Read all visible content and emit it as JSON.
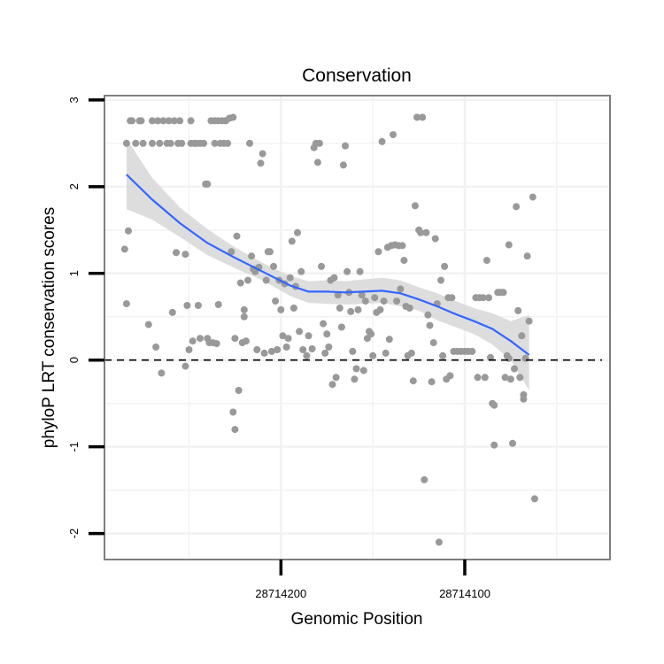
{
  "colors": {
    "background": "#ffffff",
    "panel_border": "#7f7f7f",
    "grid": "#f2f2f2",
    "points": "#999999",
    "smooth_line": "#3366ff",
    "ribbon": "#d9d9d9",
    "reference_line": "#000000"
  },
  "chart_data": {
    "type": "scatter",
    "title": "Conservation",
    "xlabel": "Genomic Position",
    "ylabel": "phyloP LRT conservation scores",
    "x_reversed": true,
    "xlim": [
      28714296,
      28714021
    ],
    "ylim": [
      -2.3,
      3.05
    ],
    "x_ticks": [
      28714200,
      28714100
    ],
    "x_tick_labels": [
      "28714200",
      "28714100"
    ],
    "y_ticks": [
      -2,
      -1,
      0,
      1,
      2,
      3
    ],
    "y_tick_labels": [
      "-2",
      "-1",
      "0",
      "1",
      "2",
      "3"
    ],
    "grid": true,
    "reference_line": {
      "y": 0,
      "style": "dashed"
    },
    "points": [
      [
        28714285,
        1.28
      ],
      [
        28714284,
        2.5
      ],
      [
        28714283,
        1.49
      ],
      [
        28714284,
        0.65
      ],
      [
        28714282,
        2.76
      ],
      [
        28714281,
        2.76
      ],
      [
        28714279,
        2.5
      ],
      [
        28714277,
        2.76
      ],
      [
        28714276,
        2.76
      ],
      [
        28714275,
        2.5
      ],
      [
        28714272,
        0.41
      ],
      [
        28714270,
        2.76
      ],
      [
        28714270,
        2.5
      ],
      [
        28714268,
        0.15
      ],
      [
        28714267,
        2.76
      ],
      [
        28714266,
        2.5
      ],
      [
        28714265,
        -0.15
      ],
      [
        28714264,
        2.76
      ],
      [
        28714262,
        2.5
      ],
      [
        28714261,
        2.76
      ],
      [
        28714260,
        2.5
      ],
      [
        28714259,
        0.55
      ],
      [
        28714258,
        2.76
      ],
      [
        28714257,
        1.24
      ],
      [
        28714256,
        2.5
      ],
      [
        28714255,
        2.76
      ],
      [
        28714254,
        2.5
      ],
      [
        28714252,
        1.22
      ],
      [
        28714252,
        -0.07
      ],
      [
        28714251,
        0.63
      ],
      [
        28714250,
        0.12
      ],
      [
        28714249,
        2.76
      ],
      [
        28714249,
        2.5
      ],
      [
        28714248,
        0.22
      ],
      [
        28714247,
        2.5
      ],
      [
        28714246,
        2.5
      ],
      [
        28714245,
        0.63
      ],
      [
        28714244,
        2.5
      ],
      [
        28714244,
        0.25
      ],
      [
        28714242,
        2.5
      ],
      [
        28714241,
        2.03
      ],
      [
        28714240,
        2.03
      ],
      [
        28714240,
        0.25
      ],
      [
        28714239,
        0.2
      ],
      [
        28714238,
        2.76
      ],
      [
        28714237,
        0.2
      ],
      [
        28714236,
        2.76
      ],
      [
        28714236,
        2.5
      ],
      [
        28714235,
        0.19
      ],
      [
        28714234,
        0.64
      ],
      [
        28714234,
        2.76
      ],
      [
        28714233,
        2.5
      ],
      [
        28714232,
        2.76
      ],
      [
        28714231,
        2.5
      ],
      [
        28714230,
        2.76
      ],
      [
        28714229,
        2.5
      ],
      [
        28714228,
        2.79
      ],
      [
        28714227,
        1.25
      ],
      [
        28714226,
        2.8
      ],
      [
        28714225,
        0.25
      ],
      [
        28714226,
        -0.6
      ],
      [
        28714225,
        -0.8
      ],
      [
        28714224,
        1.43
      ],
      [
        28714223,
        -0.35
      ],
      [
        28714222,
        0.89
      ],
      [
        28714221,
        0.2
      ],
      [
        28714220,
        0.5
      ],
      [
        28714220,
        0.58
      ],
      [
        28714219,
        0.22
      ],
      [
        28714218,
        0.92
      ],
      [
        28714217,
        2.5
      ],
      [
        28714216,
        1.2
      ],
      [
        28714215,
        1.05
      ],
      [
        28714214,
        1.02
      ],
      [
        28714213,
        0.12
      ],
      [
        28714212,
        1.07
      ],
      [
        28714211,
        2.27
      ],
      [
        28714210,
        2.38
      ],
      [
        28714209,
        0.08
      ],
      [
        28714208,
        0.92
      ],
      [
        28714207,
        1.25
      ],
      [
        28714206,
        1.25
      ],
      [
        28714205,
        0.1
      ],
      [
        28714204,
        1.08
      ],
      [
        28714203,
        0.68
      ],
      [
        28714202,
        0.12
      ],
      [
        28714201,
        0.92
      ],
      [
        28714200,
        0.58
      ],
      [
        28714199,
        0.28
      ],
      [
        28714198,
        0.88
      ],
      [
        28714197,
        0.15
      ],
      [
        28714196,
        0.25
      ],
      [
        28714195,
        0.95
      ],
      [
        28714194,
        1.37
      ],
      [
        28714193,
        0.6
      ],
      [
        28714192,
        0.85
      ],
      [
        28714191,
        1.47
      ],
      [
        28714190,
        0.33
      ],
      [
        28714189,
        1.02
      ],
      [
        28714188,
        0.12
      ],
      [
        28714186,
        0.05
      ],
      [
        28714185,
        0.28
      ],
      [
        28714183,
        0.13
      ],
      [
        28714182,
        2.45
      ],
      [
        28714181,
        2.5
      ],
      [
        28714180,
        2.28
      ],
      [
        28714179,
        2.5
      ],
      [
        28714178,
        1.08
      ],
      [
        28714177,
        0.42
      ],
      [
        28714176,
        0.08
      ],
      [
        28714175,
        0.3
      ],
      [
        28714174,
        0.15
      ],
      [
        28714173,
        0.92
      ],
      [
        28714172,
        -0.28
      ],
      [
        28714171,
        0.95
      ],
      [
        28714170,
        -0.2
      ],
      [
        28714169,
        0.75
      ],
      [
        28714168,
        0.6
      ],
      [
        28714167,
        0.38
      ],
      [
        28714166,
        2.25
      ],
      [
        28714165,
        2.47
      ],
      [
        28714164,
        1.02
      ],
      [
        28714163,
        0.78
      ],
      [
        28714162,
        0.56
      ],
      [
        28714161,
        0.1
      ],
      [
        28714160,
        -0.22
      ],
      [
        28714159,
        -0.1
      ],
      [
        28714158,
        0.58
      ],
      [
        28714157,
        1.02
      ],
      [
        28714156,
        0.75
      ],
      [
        28714155,
        -0.12
      ],
      [
        28714154,
        0.68
      ],
      [
        28714153,
        0.25
      ],
      [
        28714152,
        0.33
      ],
      [
        28714151,
        0.3
      ],
      [
        28714150,
        0.05
      ],
      [
        28714149,
        0.72
      ],
      [
        28714148,
        0.55
      ],
      [
        28714147,
        1.25
      ],
      [
        28714146,
        0.58
      ],
      [
        28714145,
        2.52
      ],
      [
        28714144,
        0.68
      ],
      [
        28714143,
        0.08
      ],
      [
        28714142,
        1.3
      ],
      [
        28714141,
        0.24
      ],
      [
        28714140,
        1.32
      ],
      [
        28714139,
        2.6
      ],
      [
        28714138,
        1.33
      ],
      [
        28714137,
        0.68
      ],
      [
        28714136,
        1.32
      ],
      [
        28714135,
        0.82
      ],
      [
        28714134,
        1.32
      ],
      [
        28714133,
        1.15
      ],
      [
        28714132,
        0.62
      ],
      [
        28714131,
        0.05
      ],
      [
        28714130,
        0.6
      ],
      [
        28714129,
        0.08
      ],
      [
        28714128,
        -0.24
      ],
      [
        28714127,
        1.78
      ],
      [
        28714126,
        2.8
      ],
      [
        28714125,
        1.5
      ],
      [
        28714124,
        1.47
      ],
      [
        28714123,
        2.8
      ],
      [
        28714122,
        -1.38
      ],
      [
        28714121,
        1.47
      ],
      [
        28714120,
        0.52
      ],
      [
        28714119,
        0.4
      ],
      [
        28714118,
        -0.25
      ],
      [
        28714117,
        0.2
      ],
      [
        28714116,
        1.4
      ],
      [
        28714115,
        0.65
      ],
      [
        28714114,
        -2.1
      ],
      [
        28714113,
        0.92
      ],
      [
        28714112,
        0.05
      ],
      [
        28714111,
        1.08
      ],
      [
        28714110,
        -0.22
      ],
      [
        28714109,
        0.72
      ],
      [
        28714108,
        -0.18
      ],
      [
        28714107,
        0.72
      ],
      [
        28714106,
        0.1
      ],
      [
        28714104,
        0.1
      ],
      [
        28714102,
        0.1
      ],
      [
        28714100,
        0.1
      ],
      [
        28714098,
        0.1
      ],
      [
        28714096,
        0.1
      ],
      [
        28714094,
        0.72
      ],
      [
        28714093,
        -0.2
      ],
      [
        28714092,
        0.72
      ],
      [
        28714090,
        0.72
      ],
      [
        28714089,
        -0.2
      ],
      [
        28714088,
        1.15
      ],
      [
        28714087,
        0.72
      ],
      [
        28714086,
        0.03
      ],
      [
        28714085,
        -0.5
      ],
      [
        28714084,
        -0.98
      ],
      [
        28714084,
        -0.52
      ],
      [
        28714082,
        0.78
      ],
      [
        28714081,
        0.78
      ],
      [
        28714080,
        0.78
      ],
      [
        28714079,
        0.78
      ],
      [
        28714078,
        -0.2
      ],
      [
        28714077,
        0.05
      ],
      [
        28714076,
        1.33
      ],
      [
        28714076,
        0.02
      ],
      [
        28714075,
        -0.22
      ],
      [
        28714074,
        -0.96
      ],
      [
        28714073,
        -0.1
      ],
      [
        28714072,
        1.77
      ],
      [
        28714071,
        0.57
      ],
      [
        28714070,
        -0.2
      ],
      [
        28714069,
        0.28
      ],
      [
        28714068,
        -0.4
      ],
      [
        28714068,
        -0.45
      ],
      [
        28714067,
        0.02
      ],
      [
        28714066,
        1.2
      ],
      [
        28714065,
        0.45
      ],
      [
        28714063,
        1.88
      ],
      [
        28714062,
        -1.6
      ]
    ],
    "smooth_line": {
      "x": [
        28714284,
        28714270,
        28714255,
        28714240,
        28714225,
        28714210,
        28714195,
        28714185,
        28714175,
        28714165,
        28714155,
        28714145,
        28714135,
        28714125,
        28714115,
        28714105,
        28714095,
        28714085,
        28714075,
        28714065
      ],
      "y": [
        2.14,
        1.85,
        1.58,
        1.35,
        1.18,
        1.02,
        0.86,
        0.79,
        0.79,
        0.78,
        0.79,
        0.8,
        0.77,
        0.7,
        0.62,
        0.53,
        0.45,
        0.36,
        0.22,
        0.06
      ],
      "lower": [
        1.74,
        1.62,
        1.42,
        1.21,
        1.06,
        0.92,
        0.74,
        0.66,
        0.65,
        0.64,
        0.65,
        0.66,
        0.62,
        0.57,
        0.46,
        0.38,
        0.3,
        0.18,
        0.0,
        -0.35
      ],
      "upper": [
        2.55,
        2.1,
        1.76,
        1.51,
        1.3,
        1.12,
        0.97,
        0.91,
        0.92,
        0.91,
        0.93,
        0.95,
        0.92,
        0.84,
        0.77,
        0.68,
        0.6,
        0.54,
        0.45,
        0.52
      ]
    }
  }
}
